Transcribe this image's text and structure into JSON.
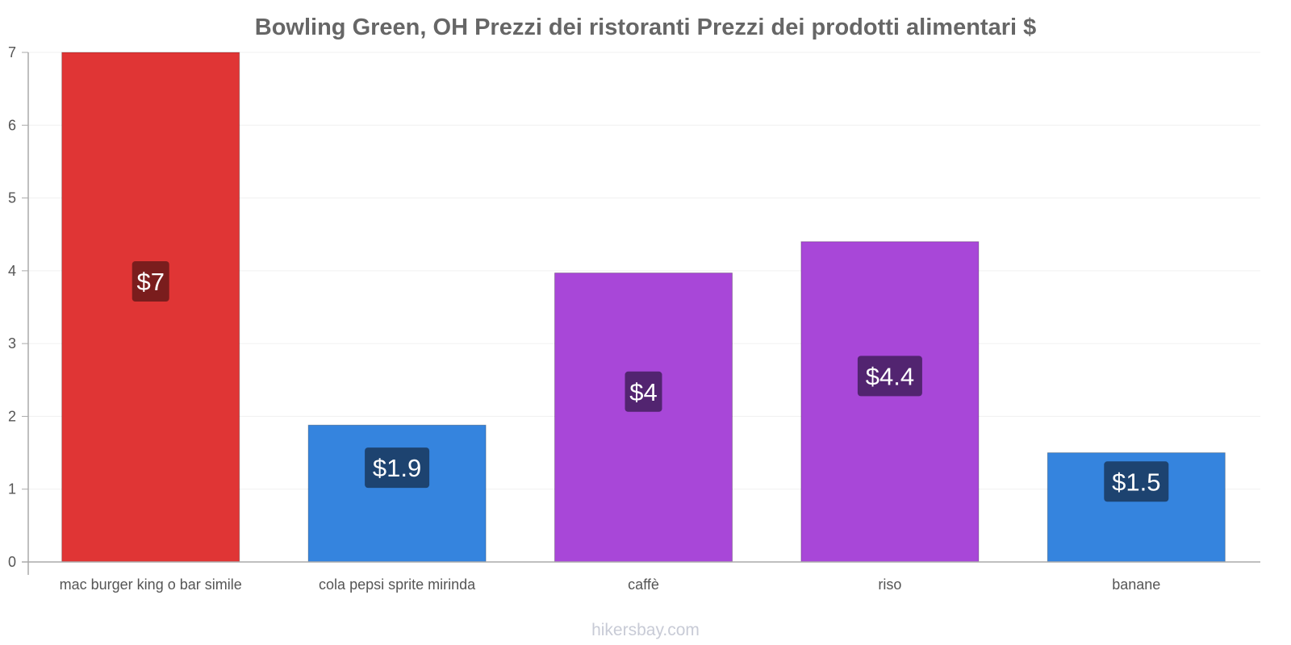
{
  "chart_data": {
    "type": "bar",
    "title": "Bowling Green, OH Prezzi dei ristoranti Prezzi dei prodotti alimentari $",
    "xlabel": "",
    "ylabel": "",
    "ylim": [
      0,
      7
    ],
    "yticks": [
      "0",
      "1",
      "2",
      "3",
      "4",
      "5",
      "6",
      "7"
    ],
    "grid": true,
    "categories": [
      "mac burger king o bar simile",
      "cola pepsi sprite mirinda",
      "caffè",
      "riso",
      "banane"
    ],
    "values": [
      7,
      1.88,
      3.97,
      4.4,
      1.5
    ],
    "data_labels": [
      "$7",
      "$1.9",
      "$4",
      "$4.4",
      "$1.5"
    ],
    "colors": [
      "#e03535",
      "#3584de",
      "#a847d8",
      "#a847d8",
      "#3584de"
    ],
    "label_colors": [
      "#7a1d1d",
      "#1d4370",
      "#522470",
      "#522470",
      "#1d4370"
    ]
  },
  "watermark": "hikersbay.com"
}
